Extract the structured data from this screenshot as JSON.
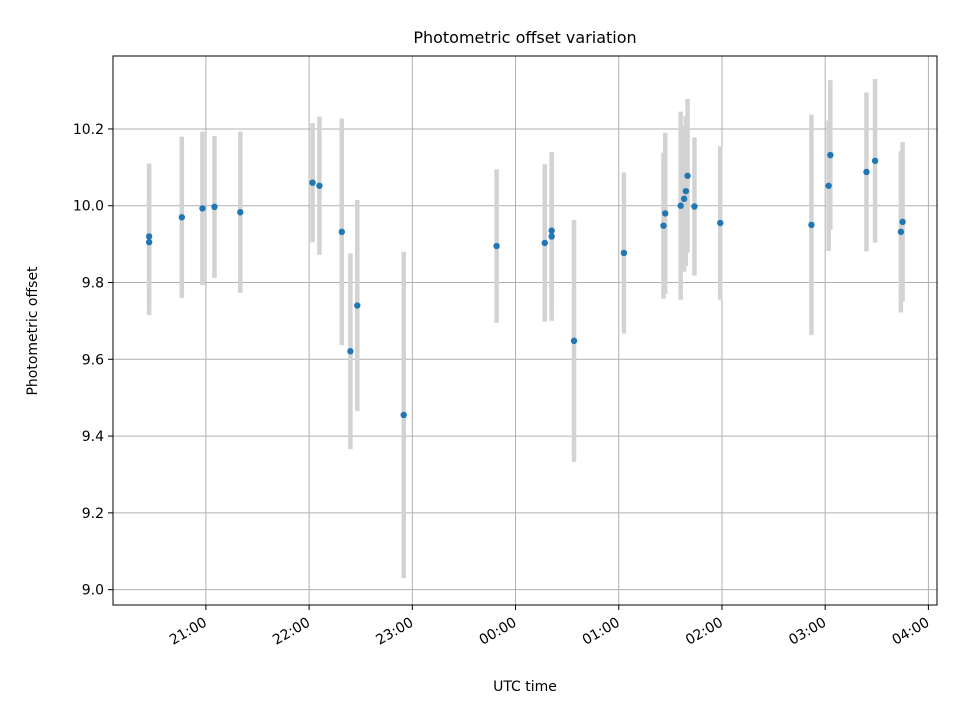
{
  "chart_data": {
    "type": "scatter",
    "title": "Photometric offset variation",
    "xlabel": "UTC time",
    "ylabel": "Photometric offset",
    "x_axis_kind": "time",
    "xlim": [
      "20:06",
      "04:05"
    ],
    "ylim": [
      8.96,
      10.39
    ],
    "x_ticks": [
      "21:00",
      "22:00",
      "23:00",
      "00:00",
      "01:00",
      "02:00",
      "03:00",
      "04:00"
    ],
    "y_ticks": [
      "9.0",
      "9.2",
      "9.4",
      "9.6",
      "9.8",
      "10.0",
      "10.2"
    ],
    "grid": true,
    "legend": "none",
    "colors": {
      "marker": "#1f77b4",
      "errorbar": "#d3d3d3",
      "grid": "#b0b0b0"
    },
    "series": [
      {
        "points": [
          {
            "x": "20:27",
            "y": 9.92,
            "yerr": 0.19
          },
          {
            "x": "20:27",
            "y": 9.905,
            "yerr": 0.19
          },
          {
            "x": "20:46",
            "y": 9.97,
            "yerr": 0.21
          },
          {
            "x": "20:58",
            "y": 9.993,
            "yerr": 0.2
          },
          {
            "x": "21:05",
            "y": 9.997,
            "yerr": 0.185
          },
          {
            "x": "21:20",
            "y": 9.983,
            "yerr": 0.21
          },
          {
            "x": "22:02",
            "y": 10.06,
            "yerr": 0.155
          },
          {
            "x": "22:06",
            "y": 10.052,
            "yerr": 0.18
          },
          {
            "x": "22:19",
            "y": 9.932,
            "yerr": 0.295
          },
          {
            "x": "22:24",
            "y": 9.621,
            "yerr": 0.255
          },
          {
            "x": "22:28",
            "y": 9.74,
            "yerr": 0.275
          },
          {
            "x": "22:55",
            "y": 9.455,
            "yerr": 0.425
          },
          {
            "x": "23:49",
            "y": 9.895,
            "yerr": 0.2
          },
          {
            "x": "00:17",
            "y": 9.903,
            "yerr": 0.205
          },
          {
            "x": "00:21",
            "y": 9.92,
            "yerr": 0.22
          },
          {
            "x": "00:21",
            "y": 9.935,
            "yerr": 0.2
          },
          {
            "x": "00:34",
            "y": 9.648,
            "yerr": 0.315
          },
          {
            "x": "01:03",
            "y": 9.877,
            "yerr": 0.21
          },
          {
            "x": "01:26",
            "y": 9.948,
            "yerr": 0.19
          },
          {
            "x": "01:27",
            "y": 9.98,
            "yerr": 0.21
          },
          {
            "x": "01:36",
            "y": 10.0,
            "yerr": 0.245
          },
          {
            "x": "01:38",
            "y": 10.018,
            "yerr": 0.19
          },
          {
            "x": "01:39",
            "y": 10.038,
            "yerr": 0.195
          },
          {
            "x": "01:40",
            "y": 10.078,
            "yerr": 0.2
          },
          {
            "x": "01:44",
            "y": 9.998,
            "yerr": 0.18
          },
          {
            "x": "01:59",
            "y": 9.955,
            "yerr": 0.2
          },
          {
            "x": "02:52",
            "y": 9.95,
            "yerr": 0.287
          },
          {
            "x": "03:02",
            "y": 10.052,
            "yerr": 0.17
          },
          {
            "x": "03:03",
            "y": 10.132,
            "yerr": 0.195
          },
          {
            "x": "03:24",
            "y": 10.088,
            "yerr": 0.207
          },
          {
            "x": "03:29",
            "y": 10.117,
            "yerr": 0.213
          },
          {
            "x": "03:44",
            "y": 9.932,
            "yerr": 0.21
          },
          {
            "x": "03:45",
            "y": 9.958,
            "yerr": 0.208
          }
        ]
      }
    ]
  }
}
